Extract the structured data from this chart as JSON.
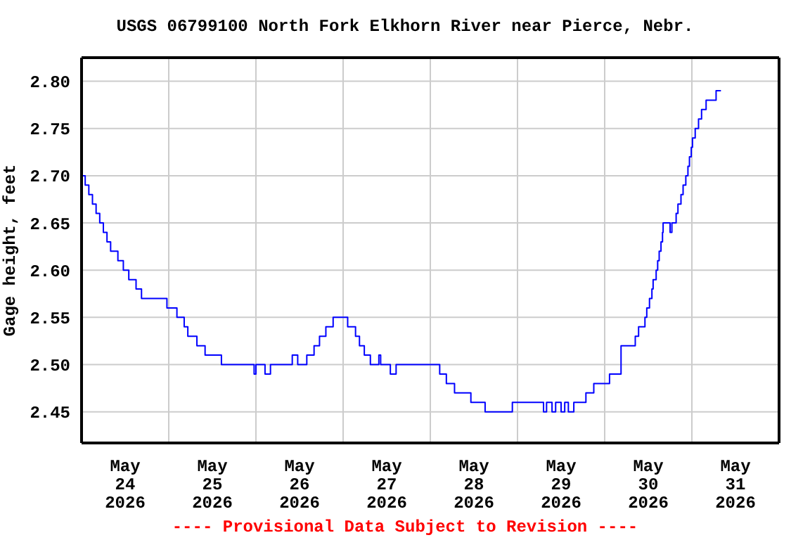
{
  "chart_data": {
    "type": "step",
    "title": "USGS 06799100 North Fork Elkhorn River near Pierce, Nebr.",
    "ylabel": "Gage height, feet",
    "annotations": [
      "---- Provisional Data Subject to Revision ----"
    ],
    "x": [
      "2026-05-24T00:00",
      "2026-05-24T01:00",
      "2026-05-24T02:00",
      "2026-05-24T03:00",
      "2026-05-24T04:00",
      "2026-05-24T05:00",
      "2026-05-24T06:00",
      "2026-05-24T07:00",
      "2026-05-24T08:00",
      "2026-05-24T10:00",
      "2026-05-24T11:30",
      "2026-05-24T13:00",
      "2026-05-24T15:00",
      "2026-05-24T16:30",
      "2026-05-24T23:30",
      "2026-05-25T02:15",
      "2026-05-25T04:15",
      "2026-05-25T05:15",
      "2026-05-25T07:45",
      "2026-05-25T10:00",
      "2026-05-25T14:30",
      "2026-05-25T23:30",
      "2026-05-26T00:00",
      "2026-05-26T02:30",
      "2026-05-26T04:00",
      "2026-05-26T10:00",
      "2026-05-26T11:30",
      "2026-05-26T14:00",
      "2026-05-26T16:00",
      "2026-05-26T17:30",
      "2026-05-26T19:15",
      "2026-05-26T21:15",
      "2026-05-27T01:15",
      "2026-05-27T03:25",
      "2026-05-27T04:30",
      "2026-05-27T05:50",
      "2026-05-27T07:30",
      "2026-05-27T09:50",
      "2026-05-27T10:20",
      "2026-05-27T13:00",
      "2026-05-27T14:35",
      "2026-05-28T02:35",
      "2026-05-28T04:25",
      "2026-05-28T06:40",
      "2026-05-28T11:10",
      "2026-05-28T15:05",
      "2026-05-28T22:35",
      "2026-05-29T07:10",
      "2026-05-29T08:00",
      "2026-05-29T09:30",
      "2026-05-29T10:30",
      "2026-05-29T12:00",
      "2026-05-29T13:00",
      "2026-05-29T14:00",
      "2026-05-29T15:30",
      "2026-05-29T18:50",
      "2026-05-29T21:00",
      "2026-05-30T01:20",
      "2026-05-30T04:30",
      "2026-05-30T08:25",
      "2026-05-30T09:20",
      "2026-05-30T11:05",
      "2026-05-30T11:35",
      "2026-05-30T12:20",
      "2026-05-30T13:00",
      "2026-05-30T13:20",
      "2026-05-30T14:10",
      "2026-05-30T14:35",
      "2026-05-30T15:00",
      "2026-05-30T15:30",
      "2026-05-30T15:55",
      "2026-05-30T16:05",
      "2026-05-30T18:00",
      "2026-05-30T18:30",
      "2026-05-30T19:40",
      "2026-05-30T20:10",
      "2026-05-30T21:00",
      "2026-05-30T21:35",
      "2026-05-30T22:20",
      "2026-05-30T22:55",
      "2026-05-30T23:20",
      "2026-05-30T23:50",
      "2026-05-31T00:10",
      "2026-05-31T00:55",
      "2026-05-31T01:50",
      "2026-05-31T02:40",
      "2026-05-31T03:55",
      "2026-05-31T06:40",
      "2026-05-31T08:00"
    ],
    "values": [
      2.7,
      2.69,
      2.68,
      2.67,
      2.66,
      2.65,
      2.64,
      2.63,
      2.62,
      2.61,
      2.6,
      2.59,
      2.58,
      2.57,
      2.56,
      2.55,
      2.54,
      2.53,
      2.52,
      2.51,
      2.5,
      2.49,
      2.5,
      2.49,
      2.5,
      2.51,
      2.5,
      2.51,
      2.52,
      2.53,
      2.54,
      2.55,
      2.54,
      2.53,
      2.52,
      2.51,
      2.5,
      2.51,
      2.5,
      2.49,
      2.5,
      2.49,
      2.48,
      2.47,
      2.46,
      2.45,
      2.46,
      2.45,
      2.46,
      2.45,
      2.46,
      2.45,
      2.46,
      2.45,
      2.46,
      2.47,
      2.48,
      2.49,
      2.52,
      2.53,
      2.54,
      2.55,
      2.56,
      2.57,
      2.58,
      2.59,
      2.6,
      2.61,
      2.62,
      2.63,
      2.64,
      2.65,
      2.64,
      2.65,
      2.66,
      2.67,
      2.68,
      2.69,
      2.7,
      2.71,
      2.72,
      2.73,
      2.74,
      2.75,
      2.76,
      2.77,
      2.78,
      2.79,
      2.79
    ],
    "color": "#0000ff",
    "xlim": [
      "2026-05-24T00:00",
      "2026-06-01T00:00"
    ],
    "xticks": [
      {
        "value": "2026-05-24T12:00",
        "label": "May 24 2026"
      },
      {
        "value": "2026-05-25T00:00",
        "label": null
      },
      {
        "value": "2026-05-25T12:00",
        "label": "May 25 2026"
      },
      {
        "value": "2026-05-26T00:00",
        "label": null
      },
      {
        "value": "2026-05-26T12:00",
        "label": "May 26 2026"
      },
      {
        "value": "2026-05-27T00:00",
        "label": null
      },
      {
        "value": "2026-05-27T12:00",
        "label": "May 27 2026"
      },
      {
        "value": "2026-05-28T00:00",
        "label": null
      },
      {
        "value": "2026-05-28T12:00",
        "label": "May 28 2026"
      },
      {
        "value": "2026-05-29T00:00",
        "label": null
      },
      {
        "value": "2026-05-29T12:00",
        "label": "May 29 2026"
      },
      {
        "value": "2026-05-30T00:00",
        "label": null
      },
      {
        "value": "2026-05-30T12:00",
        "label": "May 30 2026"
      },
      {
        "value": "2026-05-31T00:00",
        "label": null
      },
      {
        "value": "2026-05-31T12:00",
        "label": "May 31 2026"
      }
    ],
    "ylim": [
      2.417,
      2.825
    ],
    "yticks": [
      {
        "value": 2.45,
        "label": "2.45"
      },
      {
        "value": 2.5,
        "label": "2.50"
      },
      {
        "value": 2.55,
        "label": "2.55"
      },
      {
        "value": 2.6,
        "label": "2.60"
      },
      {
        "value": 2.65,
        "label": "2.65"
      },
      {
        "value": 2.7,
        "label": "2.70"
      },
      {
        "value": 2.75,
        "label": "2.75"
      },
      {
        "value": 2.8,
        "label": "2.80"
      }
    ],
    "grid": true,
    "marker": "none",
    "line_style": "solid"
  }
}
